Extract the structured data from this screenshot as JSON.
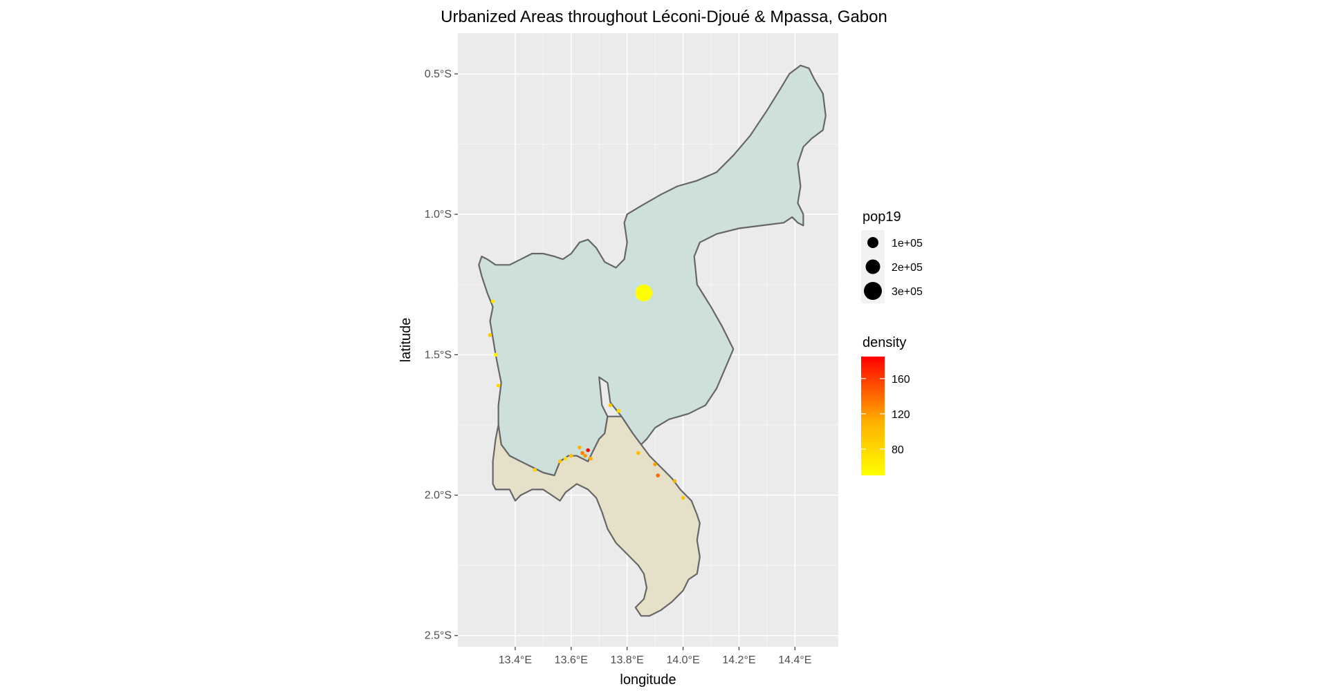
{
  "chart_data": {
    "type": "scatter",
    "title": "Urbanized Areas throughout Léconi-Djoué & Mpassa, Gabon",
    "xlabel": "longitude",
    "ylabel": "latitude",
    "xlim": [
      13.195,
      14.555
    ],
    "ylim": [
      -2.54,
      -0.355
    ],
    "x_ticks": [
      13.4,
      13.6,
      13.8,
      14.0,
      14.2,
      14.4
    ],
    "x_tick_labels": [
      "13.4°E",
      "13.6°E",
      "13.8°E",
      "14.0°E",
      "14.2°E",
      "14.4°E"
    ],
    "y_ticks": [
      -0.5,
      -1.0,
      -1.5,
      -2.0,
      -2.5
    ],
    "y_tick_labels": [
      "0.5°S",
      "1.0°S",
      "1.5°S",
      "2.0°S",
      "2.5°S"
    ],
    "grid": true,
    "panel_background": "#ebebeb",
    "regions": [
      {
        "fill": "#cde0dc",
        "stroke": "#666666",
        "outline": [
          [
            13.28,
            -1.15
          ],
          [
            13.3,
            -1.16
          ],
          [
            13.33,
            -1.18
          ],
          [
            13.38,
            -1.18
          ],
          [
            13.42,
            -1.16
          ],
          [
            13.46,
            -1.14
          ],
          [
            13.5,
            -1.14
          ],
          [
            13.54,
            -1.15
          ],
          [
            13.57,
            -1.16
          ],
          [
            13.6,
            -1.14
          ],
          [
            13.63,
            -1.1
          ],
          [
            13.66,
            -1.09
          ],
          [
            13.69,
            -1.12
          ],
          [
            13.72,
            -1.17
          ],
          [
            13.76,
            -1.19
          ],
          [
            13.79,
            -1.16
          ],
          [
            13.8,
            -1.1
          ],
          [
            13.79,
            -1.03
          ],
          [
            13.8,
            -1.0
          ],
          [
            13.85,
            -0.97
          ],
          [
            13.92,
            -0.93
          ],
          [
            13.98,
            -0.9
          ],
          [
            14.05,
            -0.88
          ],
          [
            14.12,
            -0.85
          ],
          [
            14.18,
            -0.79
          ],
          [
            14.24,
            -0.72
          ],
          [
            14.3,
            -0.63
          ],
          [
            14.35,
            -0.55
          ],
          [
            14.38,
            -0.5
          ],
          [
            14.42,
            -0.47
          ],
          [
            14.45,
            -0.48
          ],
          [
            14.47,
            -0.52
          ],
          [
            14.5,
            -0.57
          ],
          [
            14.51,
            -0.65
          ],
          [
            14.5,
            -0.7
          ],
          [
            14.46,
            -0.73
          ],
          [
            14.43,
            -0.76
          ],
          [
            14.41,
            -0.82
          ],
          [
            14.42,
            -0.9
          ],
          [
            14.41,
            -0.96
          ],
          [
            14.43,
            -1.0
          ],
          [
            14.43,
            -1.04
          ],
          [
            14.41,
            -1.03
          ],
          [
            14.39,
            -1.01
          ],
          [
            14.36,
            -1.03
          ],
          [
            14.28,
            -1.04
          ],
          [
            14.2,
            -1.05
          ],
          [
            14.12,
            -1.07
          ],
          [
            14.06,
            -1.1
          ],
          [
            14.04,
            -1.15
          ],
          [
            14.05,
            -1.25
          ],
          [
            14.1,
            -1.33
          ],
          [
            14.14,
            -1.4
          ],
          [
            14.18,
            -1.48
          ],
          [
            14.15,
            -1.55
          ],
          [
            14.12,
            -1.62
          ],
          [
            14.08,
            -1.68
          ],
          [
            14.02,
            -1.71
          ],
          [
            13.95,
            -1.73
          ],
          [
            13.9,
            -1.76
          ],
          [
            13.87,
            -1.8
          ],
          [
            13.85,
            -1.82
          ],
          [
            13.82,
            -1.78
          ],
          [
            13.78,
            -1.72
          ],
          [
            13.74,
            -1.67
          ],
          [
            13.73,
            -1.6
          ],
          [
            13.7,
            -1.58
          ],
          [
            13.71,
            -1.68
          ],
          [
            13.73,
            -1.72
          ],
          [
            13.72,
            -1.78
          ],
          [
            13.7,
            -1.8
          ],
          [
            13.68,
            -1.84
          ],
          [
            13.66,
            -1.88
          ],
          [
            13.62,
            -1.86
          ],
          [
            13.59,
            -1.86
          ],
          [
            13.56,
            -1.88
          ],
          [
            13.54,
            -1.93
          ],
          [
            13.5,
            -1.92
          ],
          [
            13.46,
            -1.9
          ],
          [
            13.42,
            -1.88
          ],
          [
            13.38,
            -1.86
          ],
          [
            13.35,
            -1.82
          ],
          [
            13.34,
            -1.75
          ],
          [
            13.34,
            -1.68
          ],
          [
            13.35,
            -1.6
          ],
          [
            13.34,
            -1.55
          ],
          [
            13.33,
            -1.5
          ],
          [
            13.32,
            -1.44
          ],
          [
            13.31,
            -1.38
          ],
          [
            13.32,
            -1.33
          ],
          [
            13.3,
            -1.28
          ],
          [
            13.28,
            -1.22
          ],
          [
            13.27,
            -1.18
          ]
        ]
      },
      {
        "fill": "#e6e0c8",
        "stroke": "#666666",
        "outline": [
          [
            13.34,
            -1.75
          ],
          [
            13.35,
            -1.82
          ],
          [
            13.38,
            -1.86
          ],
          [
            13.42,
            -1.88
          ],
          [
            13.46,
            -1.9
          ],
          [
            13.5,
            -1.92
          ],
          [
            13.54,
            -1.93
          ],
          [
            13.56,
            -1.88
          ],
          [
            13.59,
            -1.86
          ],
          [
            13.62,
            -1.86
          ],
          [
            13.66,
            -1.88
          ],
          [
            13.68,
            -1.84
          ],
          [
            13.7,
            -1.8
          ],
          [
            13.72,
            -1.78
          ],
          [
            13.73,
            -1.72
          ],
          [
            13.78,
            -1.72
          ],
          [
            13.82,
            -1.78
          ],
          [
            13.85,
            -1.82
          ],
          [
            13.88,
            -1.86
          ],
          [
            13.92,
            -1.9
          ],
          [
            13.96,
            -1.94
          ],
          [
            13.99,
            -1.98
          ],
          [
            14.03,
            -2.02
          ],
          [
            14.05,
            -2.07
          ],
          [
            14.06,
            -2.1
          ],
          [
            14.05,
            -2.16
          ],
          [
            14.06,
            -2.22
          ],
          [
            14.05,
            -2.28
          ],
          [
            14.02,
            -2.3
          ],
          [
            14.0,
            -2.34
          ],
          [
            13.96,
            -2.38
          ],
          [
            13.92,
            -2.41
          ],
          [
            13.88,
            -2.43
          ],
          [
            13.85,
            -2.43
          ],
          [
            13.83,
            -2.4
          ],
          [
            13.86,
            -2.37
          ],
          [
            13.87,
            -2.33
          ],
          [
            13.86,
            -2.28
          ],
          [
            13.84,
            -2.25
          ],
          [
            13.8,
            -2.21
          ],
          [
            13.76,
            -2.17
          ],
          [
            13.73,
            -2.12
          ],
          [
            13.71,
            -2.06
          ],
          [
            13.69,
            -2.01
          ],
          [
            13.66,
            -1.98
          ],
          [
            13.62,
            -1.96
          ],
          [
            13.58,
            -1.99
          ],
          [
            13.56,
            -2.02
          ],
          [
            13.53,
            -2.0
          ],
          [
            13.5,
            -1.98
          ],
          [
            13.46,
            -1.98
          ],
          [
            13.42,
            -2.0
          ],
          [
            13.4,
            -2.02
          ],
          [
            13.38,
            -1.98
          ],
          [
            13.33,
            -1.98
          ],
          [
            13.32,
            -1.96
          ],
          [
            13.32,
            -1.88
          ],
          [
            13.33,
            -1.8
          ]
        ]
      }
    ],
    "series": [
      {
        "name": "pop19",
        "x": [
          13.86,
          13.32,
          13.31,
          13.33,
          13.34,
          13.47,
          13.56,
          13.58,
          13.6,
          13.63,
          13.64,
          13.65,
          13.66,
          13.67,
          13.74,
          13.77,
          13.84,
          13.9,
          13.91,
          13.97,
          14.0
        ],
        "y": [
          -1.28,
          -1.31,
          -1.43,
          -1.5,
          -1.61,
          -1.91,
          -1.88,
          -1.87,
          -1.86,
          -1.83,
          -1.85,
          -1.86,
          -1.84,
          -1.87,
          -1.68,
          -1.7,
          -1.85,
          -1.89,
          -1.93,
          -1.95,
          -2.01
        ],
        "pop19": [
          265000,
          1200,
          1500,
          1000,
          1300,
          1400,
          1800,
          1100,
          1600,
          2000,
          2300,
          1700,
          1900,
          1300,
          1500,
          1100,
          1400,
          1600,
          1800,
          1300,
          1200
        ],
        "density": [
          50,
          70,
          90,
          60,
          80,
          85,
          95,
          75,
          100,
          110,
          130,
          120,
          180,
          110,
          90,
          80,
          100,
          120,
          140,
          110,
          95
        ]
      }
    ],
    "legends": {
      "size": {
        "title": "pop19",
        "labels": [
          "1e+05",
          "2e+05",
          "3e+05"
        ]
      },
      "color": {
        "title": "density",
        "labels": [
          "80",
          "120",
          "160"
        ],
        "values": [
          80,
          120,
          160
        ],
        "range": [
          50,
          185
        ],
        "low_color": "#ffff00",
        "high_color": "#ff0000"
      }
    }
  }
}
